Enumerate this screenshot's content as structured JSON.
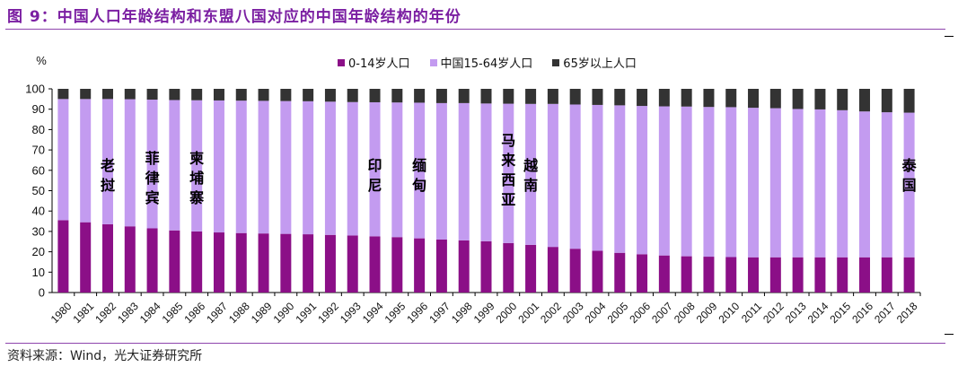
{
  "title": "图 9：中国人口年龄结构和东盟八国对应的中国年龄结构的年份",
  "source": "资料来源：Wind，光大证券研究所",
  "colors": {
    "young": "#8b0f87",
    "working": "#c39bf0",
    "old": "#333333",
    "accent": "#7b1fa2"
  },
  "chart_data": {
    "type": "bar",
    "stacked": true,
    "y_unit": "%",
    "ylim": [
      0,
      100
    ],
    "yticks": [
      0,
      10,
      20,
      30,
      40,
      50,
      60,
      70,
      80,
      90,
      100
    ],
    "categories": [
      "1980",
      "1981",
      "1982",
      "1983",
      "1984",
      "1985",
      "1986",
      "1987",
      "1988",
      "1989",
      "1990",
      "1991",
      "1992",
      "1993",
      "1994",
      "1995",
      "1996",
      "1997",
      "1998",
      "1999",
      "2000",
      "2001",
      "2002",
      "2003",
      "2004",
      "2005",
      "2006",
      "2007",
      "2008",
      "2009",
      "2010",
      "2011",
      "2012",
      "2013",
      "2014",
      "2015",
      "2016",
      "2017",
      "2018"
    ],
    "series": [
      {
        "name": "0-14岁人口",
        "color": "#8b0f87",
        "values": [
          35.5,
          34.5,
          33.5,
          32.5,
          31.5,
          30.5,
          30.0,
          29.5,
          29.2,
          29.0,
          28.8,
          28.6,
          28.3,
          28.0,
          27.6,
          27.2,
          26.6,
          26.0,
          25.6,
          25.2,
          24.3,
          23.4,
          22.4,
          21.5,
          20.5,
          19.5,
          18.8,
          18.2,
          17.8,
          17.6,
          17.4,
          17.3,
          17.3,
          17.3,
          17.3,
          17.3,
          17.3,
          17.3,
          17.3
        ]
      },
      {
        "name": "中国15-64岁人口",
        "color": "#c39bf0",
        "values": [
          59.5,
          60.5,
          61.5,
          62.4,
          63.2,
          64.0,
          64.4,
          64.8,
          65.0,
          65.1,
          65.2,
          65.3,
          65.4,
          65.5,
          65.8,
          66.1,
          66.6,
          67.0,
          67.4,
          67.6,
          68.4,
          69.2,
          70.2,
          70.8,
          71.6,
          72.4,
          72.8,
          73.2,
          73.5,
          73.5,
          73.6,
          73.4,
          73.2,
          72.8,
          72.6,
          72.2,
          71.6,
          71.2,
          71.0
        ]
      },
      {
        "name": "65岁以上人口",
        "color": "#333333",
        "values": [
          5.0,
          5.0,
          5.0,
          5.1,
          5.3,
          5.5,
          5.6,
          5.7,
          5.8,
          5.9,
          6.0,
          6.1,
          6.3,
          6.5,
          6.6,
          6.7,
          6.8,
          7.0,
          7.0,
          7.2,
          7.3,
          7.4,
          7.4,
          7.7,
          7.9,
          8.1,
          8.4,
          8.6,
          8.7,
          8.9,
          9.0,
          9.3,
          9.5,
          9.9,
          10.1,
          10.5,
          11.1,
          11.5,
          11.7
        ]
      }
    ],
    "annotations": [
      {
        "category": "1982",
        "text": "老挝"
      },
      {
        "category": "1984",
        "text": "菲律宾"
      },
      {
        "category": "1986",
        "text": "柬埔寨"
      },
      {
        "category": "1994",
        "text": "印尼"
      },
      {
        "category": "1996",
        "text": "缅甸"
      },
      {
        "category": "2000",
        "text": "马来西亚"
      },
      {
        "category": "2001",
        "text": "越南"
      },
      {
        "category": "2018",
        "text": "泰国"
      }
    ],
    "legend_position": "top-center",
    "grid": false
  }
}
